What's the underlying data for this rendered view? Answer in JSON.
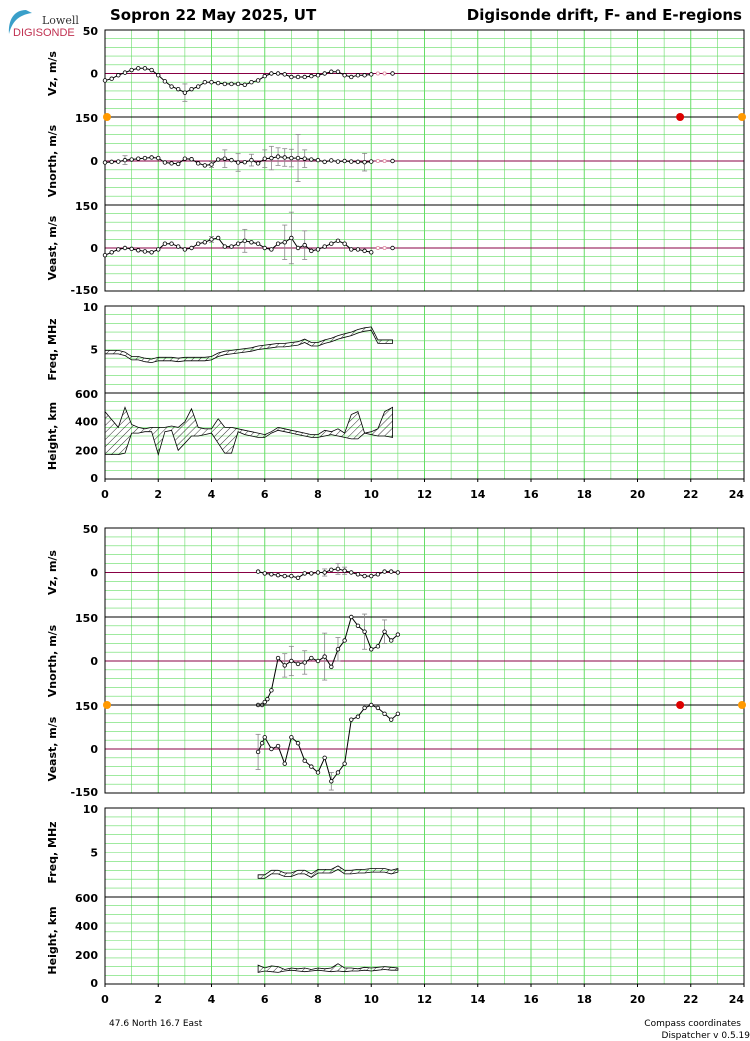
{
  "header": {
    "logo_line1": "Lowell",
    "logo_line2": "DIGISONDE",
    "title_left": "Sopron  22 May 2025, UT",
    "title_right": "Digisonde drift, F- and E-regions"
  },
  "footer": {
    "coords": "47.6 North   16.7 East",
    "compass": "Compass coordinates",
    "dispatcher": "Dispatcher v 0.5.19"
  },
  "colors": {
    "grid": "#66dd66",
    "zero_line": "#880044",
    "frame": "#000000",
    "marker_red": "#dd0000",
    "marker_orange": "#ff9900"
  },
  "chart_data": [
    {
      "type": "line",
      "region": "F",
      "panel": "Vz",
      "ylabel": "Vz, m/s",
      "ylim": [
        -50,
        50
      ],
      "yticks": [
        50,
        0
      ],
      "x": [
        0.0,
        0.25,
        0.5,
        0.75,
        1.0,
        1.25,
        1.5,
        1.75,
        2.0,
        2.25,
        2.5,
        2.75,
        3.0,
        3.25,
        3.5,
        3.75,
        4.0,
        4.25,
        4.5,
        4.75,
        5.0,
        5.25,
        5.5,
        5.75,
        6.0,
        6.25,
        6.5,
        6.75,
        7.0,
        7.25,
        7.5,
        7.75,
        8.0,
        8.25,
        8.5,
        8.75,
        9.0,
        9.25,
        9.5,
        9.75,
        10.0
      ],
      "y": [
        -8,
        -6,
        -2,
        1,
        4,
        6,
        6,
        4,
        -2,
        -9,
        -15,
        -18,
        -22,
        -18,
        -15,
        -10,
        -10,
        -11,
        -12,
        -12,
        -12,
        -13,
        -10,
        -8,
        -3,
        0,
        0,
        -1,
        -4,
        -4,
        -4,
        -3,
        -2,
        0,
        2,
        2,
        -2,
        -4,
        -2,
        -2,
        -1
      ],
      "err": [
        0,
        0,
        0,
        0,
        0,
        0,
        0,
        0,
        0,
        0,
        0,
        0,
        10,
        0,
        0,
        0,
        0,
        0,
        0,
        0,
        0,
        0,
        0,
        0,
        0,
        0,
        0,
        0,
        0,
        0,
        0,
        0,
        0,
        0,
        0,
        0,
        0,
        0,
        0,
        0,
        0
      ],
      "x_light": [
        10.25,
        10.5
      ],
      "y_light": [
        0,
        0
      ],
      "x_end": 10.8,
      "y_end": 0
    },
    {
      "type": "line",
      "region": "F",
      "panel": "Vnorth",
      "ylabel": "Vnorth, m/s",
      "ylim": [
        -150,
        150
      ],
      "yticks": [
        150,
        0
      ],
      "x": [
        0.0,
        0.25,
        0.5,
        0.75,
        1.0,
        1.25,
        1.5,
        1.75,
        2.0,
        2.25,
        2.5,
        2.75,
        3.0,
        3.25,
        3.5,
        3.75,
        4.0,
        4.25,
        4.5,
        4.75,
        5.0,
        5.25,
        5.5,
        5.75,
        6.0,
        6.25,
        6.5,
        6.75,
        7.0,
        7.25,
        7.5,
        7.75,
        8.0,
        8.25,
        8.5,
        8.75,
        9.0,
        9.25,
        9.5,
        9.75,
        10.0
      ],
      "y": [
        -5,
        -3,
        -2,
        3,
        5,
        8,
        10,
        12,
        10,
        -5,
        -8,
        -10,
        8,
        6,
        -8,
        -15,
        -12,
        5,
        8,
        3,
        -5,
        -4,
        3,
        -8,
        8,
        10,
        15,
        12,
        10,
        10,
        8,
        5,
        3,
        -3,
        2,
        -2,
        0,
        -2,
        -3,
        -4,
        -2
      ],
      "err": [
        0,
        0,
        0,
        15,
        0,
        0,
        0,
        0,
        0,
        0,
        0,
        0,
        0,
        0,
        0,
        0,
        10,
        0,
        30,
        0,
        30,
        0,
        20,
        0,
        30,
        40,
        30,
        30,
        30,
        80,
        30,
        0,
        0,
        0,
        0,
        0,
        0,
        0,
        0,
        30,
        0
      ],
      "x_light": [
        10.25,
        10.5
      ],
      "y_light": [
        0,
        0
      ],
      "x_end": 10.8,
      "y_end": 0,
      "markers": [
        {
          "x": 0.0,
          "y": 150,
          "kind": "orange"
        },
        {
          "x": 21.6,
          "y": 150,
          "kind": "red"
        },
        {
          "x": 24.0,
          "y": 150,
          "kind": "orange"
        }
      ]
    },
    {
      "type": "line",
      "region": "F",
      "panel": "Veast",
      "ylabel": "Veast, m/s",
      "ylim": [
        -150,
        150
      ],
      "yticks": [
        150,
        0,
        -150
      ],
      "x": [
        0.0,
        0.25,
        0.5,
        0.75,
        1.0,
        1.25,
        1.5,
        1.75,
        2.0,
        2.25,
        2.5,
        2.75,
        3.0,
        3.25,
        3.5,
        3.75,
        4.0,
        4.25,
        4.5,
        4.75,
        5.0,
        5.25,
        5.5,
        5.75,
        6.0,
        6.25,
        6.5,
        6.75,
        7.0,
        7.25,
        7.5,
        7.75,
        8.0,
        8.25,
        8.5,
        8.75,
        9.0,
        9.25,
        9.5,
        9.75,
        10.0
      ],
      "y": [
        -25,
        -15,
        -5,
        0,
        -3,
        -8,
        -12,
        -15,
        -5,
        15,
        15,
        5,
        -5,
        0,
        15,
        20,
        30,
        35,
        5,
        5,
        15,
        25,
        20,
        15,
        0,
        -5,
        15,
        20,
        35,
        0,
        10,
        -10,
        -5,
        5,
        15,
        25,
        15,
        -5,
        -5,
        -10,
        -15
      ],
      "err": [
        0,
        0,
        0,
        0,
        0,
        0,
        0,
        0,
        0,
        0,
        0,
        0,
        0,
        0,
        0,
        0,
        10,
        0,
        0,
        0,
        0,
        40,
        0,
        0,
        0,
        0,
        0,
        60,
        90,
        0,
        50,
        0,
        0,
        0,
        0,
        0,
        0,
        0,
        0,
        0,
        0
      ],
      "x_light": [
        10.25,
        10.5
      ],
      "y_light": [
        0,
        0
      ],
      "x_end": 10.8,
      "y_end": 0
    },
    {
      "type": "area",
      "region": "F",
      "panel": "Freq",
      "ylabel": "Freq, MHz",
      "ylim": [
        0,
        10
      ],
      "yticks": [
        10,
        5
      ],
      "x": [
        0.0,
        0.5,
        0.75,
        1.0,
        1.25,
        1.5,
        1.75,
        2.0,
        2.25,
        2.5,
        2.75,
        3.0,
        3.25,
        3.5,
        3.75,
        4.0,
        4.25,
        4.5,
        4.75,
        5.0,
        5.25,
        5.5,
        5.75,
        6.0,
        6.25,
        6.5,
        6.75,
        7.0,
        7.25,
        7.5,
        7.75,
        8.0,
        8.25,
        8.5,
        8.75,
        9.0,
        9.25,
        9.5,
        9.75,
        10.0,
        10.25,
        10.5,
        10.8
      ],
      "low": [
        4.5,
        4.5,
        4.3,
        3.8,
        3.8,
        3.6,
        3.5,
        3.7,
        3.7,
        3.7,
        3.6,
        3.7,
        3.7,
        3.7,
        3.7,
        3.8,
        4.2,
        4.4,
        4.5,
        4.6,
        4.7,
        4.8,
        5.0,
        5.1,
        5.2,
        5.3,
        5.3,
        5.4,
        5.5,
        5.8,
        5.4,
        5.4,
        5.7,
        5.9,
        6.2,
        6.4,
        6.6,
        6.9,
        7.1,
        7.2,
        5.7,
        5.7,
        5.7
      ],
      "high": [
        4.9,
        4.9,
        4.7,
        4.2,
        4.2,
        4.0,
        3.9,
        4.1,
        4.1,
        4.1,
        4.0,
        4.1,
        4.1,
        4.1,
        4.1,
        4.2,
        4.6,
        4.8,
        4.9,
        5.0,
        5.1,
        5.2,
        5.4,
        5.5,
        5.6,
        5.7,
        5.7,
        5.8,
        5.9,
        6.2,
        5.8,
        5.8,
        6.1,
        6.3,
        6.6,
        6.8,
        7.0,
        7.3,
        7.5,
        7.6,
        6.1,
        6.1,
        6.1
      ]
    },
    {
      "type": "area",
      "region": "F",
      "panel": "Height",
      "ylabel": "Height, km",
      "ylim": [
        0,
        600
      ],
      "yticks": [
        600,
        400,
        200,
        0
      ],
      "x": [
        0.0,
        0.5,
        0.75,
        1.0,
        1.25,
        1.5,
        1.75,
        2.0,
        2.25,
        2.5,
        2.75,
        3.0,
        3.25,
        3.5,
        3.75,
        4.0,
        4.25,
        4.5,
        4.75,
        5.0,
        5.25,
        5.5,
        5.75,
        6.0,
        6.25,
        6.5,
        6.75,
        7.0,
        7.25,
        7.5,
        7.75,
        8.0,
        8.25,
        8.5,
        8.75,
        9.0,
        9.25,
        9.5,
        9.75,
        10.0,
        10.25,
        10.5,
        10.8
      ],
      "low": [
        170,
        170,
        180,
        320,
        320,
        330,
        330,
        170,
        330,
        340,
        200,
        250,
        300,
        300,
        310,
        320,
        250,
        180,
        180,
        330,
        310,
        300,
        290,
        290,
        320,
        340,
        330,
        320,
        310,
        300,
        290,
        290,
        300,
        310,
        300,
        290,
        280,
        280,
        320,
        310,
        300,
        300,
        290
      ],
      "high": [
        470,
        360,
        500,
        380,
        360,
        350,
        360,
        360,
        360,
        370,
        360,
        400,
        490,
        360,
        350,
        350,
        420,
        360,
        360,
        350,
        340,
        330,
        320,
        310,
        330,
        360,
        350,
        340,
        330,
        320,
        310,
        310,
        340,
        330,
        350,
        320,
        450,
        470,
        320,
        330,
        350,
        470,
        500
      ]
    },
    {
      "type": "line",
      "region": "E",
      "panel": "Vz",
      "ylabel": "Vz, m/s",
      "ylim": [
        -50,
        50
      ],
      "yticks": [
        50,
        0
      ],
      "x": [
        5.75,
        6.0,
        6.25,
        6.5,
        6.75,
        7.0,
        7.25,
        7.5,
        7.75,
        8.0,
        8.25,
        8.5,
        8.75,
        9.0,
        9.25,
        9.5,
        9.75,
        10.0,
        10.25,
        10.5,
        10.75,
        11.0
      ],
      "y": [
        1,
        -1,
        -2,
        -3,
        -4,
        -4,
        -6,
        -1,
        -1,
        0,
        0,
        3,
        4,
        2,
        0,
        -2,
        -4,
        -4,
        -2,
        1,
        1,
        0
      ],
      "err": [
        0,
        0,
        0,
        0,
        0,
        0,
        0,
        0,
        0,
        0,
        4,
        0,
        6,
        4,
        0,
        0,
        0,
        0,
        0,
        0,
        0,
        0
      ]
    },
    {
      "type": "line",
      "region": "E",
      "panel": "Vnorth",
      "ylabel": "Vnorth, m/s",
      "ylim": [
        -150,
        150
      ],
      "yticks": [
        150,
        0
      ],
      "x": [
        5.75,
        5.9,
        6.0,
        6.1,
        6.25,
        6.5,
        6.75,
        7.0,
        7.25,
        7.5,
        7.75,
        8.0,
        8.25,
        8.5,
        8.75,
        9.0,
        9.25,
        9.5,
        9.75,
        10.0,
        10.25,
        10.5,
        10.75,
        11.0
      ],
      "y": [
        -150,
        -150,
        -140,
        -130,
        -100,
        10,
        -15,
        0,
        -10,
        -5,
        10,
        0,
        15,
        -20,
        40,
        70,
        150,
        120,
        100,
        40,
        50,
        100,
        70,
        90
      ],
      "err": [
        0,
        0,
        0,
        0,
        0,
        0,
        40,
        50,
        0,
        40,
        0,
        0,
        80,
        0,
        40,
        0,
        0,
        0,
        60,
        0,
        0,
        40,
        0,
        0
      ]
    },
    {
      "type": "line",
      "region": "E",
      "panel": "Veast",
      "ylabel": "Veast, m/s",
      "ylim": [
        -150,
        150
      ],
      "yticks": [
        150,
        0,
        -150
      ],
      "x": [
        5.75,
        5.9,
        6.0,
        6.25,
        6.5,
        6.75,
        7.0,
        7.25,
        7.5,
        7.75,
        8.0,
        8.25,
        8.5,
        8.75,
        9.0,
        9.25,
        9.5,
        9.75,
        10.0,
        10.25,
        10.5,
        10.75,
        11.0
      ],
      "y": [
        -10,
        20,
        40,
        0,
        10,
        -50,
        40,
        20,
        -40,
        -60,
        -80,
        -30,
        -110,
        -80,
        -50,
        100,
        110,
        140,
        150,
        140,
        120,
        100,
        120
      ],
      "err": [
        60,
        0,
        0,
        0,
        0,
        0,
        0,
        0,
        0,
        0,
        0,
        0,
        30,
        0,
        0,
        0,
        0,
        0,
        0,
        0,
        0,
        0,
        0
      ],
      "markers": [
        {
          "x": 0.0,
          "y": 150,
          "kind": "orange"
        },
        {
          "x": 21.6,
          "y": 150,
          "kind": "red"
        },
        {
          "x": 24.0,
          "y": 150,
          "kind": "orange"
        }
      ]
    },
    {
      "type": "area",
      "region": "E",
      "panel": "Freq",
      "ylabel": "Freq, MHz",
      "ylim": [
        0,
        10
      ],
      "yticks": [
        10,
        5
      ],
      "x": [
        5.75,
        6.0,
        6.25,
        6.5,
        6.75,
        7.0,
        7.25,
        7.5,
        7.75,
        8.0,
        8.25,
        8.5,
        8.75,
        9.0,
        9.25,
        9.5,
        9.75,
        10.0,
        10.25,
        10.5,
        10.75,
        11.0
      ],
      "low": [
        2.1,
        2.1,
        2.6,
        2.6,
        2.3,
        2.3,
        2.6,
        2.6,
        2.2,
        2.7,
        2.7,
        2.7,
        3.1,
        2.6,
        2.6,
        2.7,
        2.7,
        2.8,
        2.8,
        2.8,
        2.6,
        2.8
      ],
      "high": [
        2.5,
        2.5,
        3.0,
        3.0,
        2.7,
        2.7,
        3.0,
        3.0,
        2.6,
        3.1,
        3.1,
        3.1,
        3.5,
        3.0,
        3.0,
        3.1,
        3.1,
        3.2,
        3.2,
        3.2,
        3.0,
        3.2
      ]
    },
    {
      "type": "area",
      "region": "E",
      "panel": "Height",
      "ylabel": "Height, km",
      "ylim": [
        0,
        600
      ],
      "yticks": [
        600,
        400,
        200,
        0
      ],
      "x": [
        5.75,
        6.0,
        6.25,
        6.5,
        6.75,
        7.0,
        7.25,
        7.5,
        7.75,
        8.0,
        8.25,
        8.5,
        8.75,
        9.0,
        9.25,
        9.5,
        9.75,
        10.0,
        10.25,
        10.5,
        10.75,
        11.0
      ],
      "low": [
        80,
        90,
        85,
        80,
        90,
        95,
        90,
        85,
        90,
        95,
        90,
        85,
        90,
        85,
        90,
        90,
        95,
        90,
        95,
        100,
        95,
        95
      ],
      "high": [
        130,
        110,
        125,
        120,
        100,
        110,
        105,
        110,
        100,
        110,
        105,
        110,
        140,
        110,
        110,
        105,
        115,
        110,
        115,
        120,
        115,
        110
      ]
    }
  ],
  "x_axis": {
    "xlim": [
      0,
      24
    ],
    "tick_labels": [
      "0",
      "2",
      "4",
      "6",
      "8",
      "10",
      "12",
      "14",
      "16",
      "18",
      "20",
      "22",
      "24"
    ]
  }
}
